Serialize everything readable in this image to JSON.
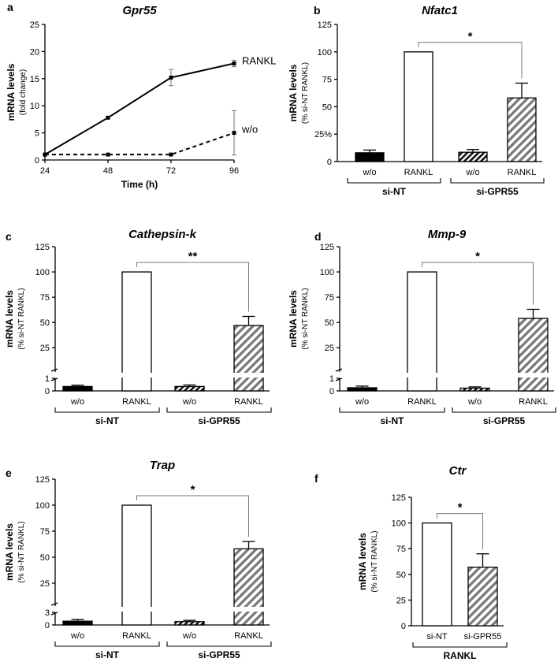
{
  "chart_data": [
    {
      "id": "a",
      "type": "line",
      "panel_letter": "a",
      "title": "Gpr55",
      "ylabel": "mRNA levels",
      "ylabel_sub": "(fold change)",
      "xlabel": "Time (h)",
      "x": [
        24,
        48,
        72,
        96
      ],
      "x_ticks": [
        "24",
        "48",
        "72",
        "96"
      ],
      "ylim": [
        0,
        25
      ],
      "y_ticks": [
        "0",
        "5",
        "10",
        "15",
        "20",
        "25"
      ],
      "series": [
        {
          "name": "RANKL",
          "style": "solid",
          "values": [
            1,
            7.8,
            15.2,
            17.8
          ],
          "errors": [
            0,
            0.2,
            1.5,
            0.6
          ]
        },
        {
          "name": "w/o",
          "style": "dashed",
          "values": [
            1,
            1,
            1,
            5
          ],
          "errors": [
            0,
            0,
            0,
            4.1
          ]
        }
      ]
    },
    {
      "id": "b",
      "type": "bar",
      "panel_letter": "b",
      "title": "Nfatc1",
      "ylabel": "mRNA levels",
      "ylabel_sub": "(% si-NT RANKL)",
      "ylim": [
        0,
        125
      ],
      "y_ticks": [
        "0",
        "25%",
        "50",
        "75",
        "100",
        "125"
      ],
      "categories": [
        "w/o",
        "RANKL",
        "w/o",
        "RANKL"
      ],
      "fills": [
        "black",
        "white",
        "hatch-dense",
        "hatch"
      ],
      "values": [
        8,
        100,
        8.5,
        58
      ],
      "errors": [
        2.5,
        0,
        2.5,
        13.5
      ],
      "groups": [
        "si-NT",
        "si-GPR55"
      ],
      "significance": "*"
    },
    {
      "id": "c",
      "type": "bar",
      "panel_letter": "c",
      "title": "Cathepsin-k",
      "ylabel": "mRNA levels",
      "ylabel_sub": "(% si-NT RANKL)",
      "y_ticks": [
        "0",
        "1",
        "25",
        "50",
        "75",
        "100",
        "125"
      ],
      "categories": [
        "w/o",
        "RANKL",
        "w/o",
        "RANKL"
      ],
      "fills": [
        "black",
        "white",
        "hatch-dense",
        "hatch"
      ],
      "values": [
        0.35,
        100,
        0.35,
        47
      ],
      "errors": [
        0.1,
        0,
        0.12,
        9
      ],
      "groups": [
        "si-NT",
        "si-GPR55"
      ],
      "significance": "**"
    },
    {
      "id": "d",
      "type": "bar",
      "panel_letter": "d",
      "title": "Mmp-9",
      "ylabel": "mRNA levels",
      "ylabel_sub": "(% si-NT RANKL)",
      "y_ticks": [
        "0",
        "1",
        "25",
        "50",
        "75",
        "100",
        "125"
      ],
      "categories": [
        "w/o",
        "RANKL",
        "w/o",
        "RANKL"
      ],
      "fills": [
        "black",
        "white",
        "hatch-dense",
        "hatch"
      ],
      "values": [
        0.25,
        100,
        0.22,
        54
      ],
      "errors": [
        0.13,
        0,
        0.1,
        9
      ],
      "groups": [
        "si-NT",
        "si-GPR55"
      ],
      "significance": "*"
    },
    {
      "id": "e",
      "type": "bar",
      "panel_letter": "e",
      "title": "Trap",
      "ylabel": "mRNA levels",
      "ylabel_sub": "(% si-NT RANKL)",
      "y_ticks": [
        "0",
        "3",
        "25",
        "50",
        "75",
        "100",
        "125"
      ],
      "categories": [
        "w/o",
        "RANKL",
        "w/o",
        "RANKL"
      ],
      "fills": [
        "black",
        "white",
        "hatch-dense",
        "hatch"
      ],
      "values": [
        0.9,
        100,
        0.8,
        58
      ],
      "errors": [
        0.4,
        0,
        0.3,
        7
      ],
      "groups": [
        "si-NT",
        "si-GPR55"
      ],
      "significance": "*"
    },
    {
      "id": "f",
      "type": "bar",
      "panel_letter": "f",
      "title": "Ctr",
      "ylabel": "mRNA levels",
      "ylabel_sub": "(% si-NT RANKL)",
      "ylim": [
        0,
        125
      ],
      "y_ticks": [
        "0",
        "25",
        "50",
        "75",
        "100",
        "125"
      ],
      "categories": [
        "si-NT",
        "si-GPR55"
      ],
      "fills": [
        "white",
        "hatch"
      ],
      "values": [
        100,
        57
      ],
      "errors": [
        0,
        13
      ],
      "groups": [
        "RANKL"
      ],
      "significance": "*"
    }
  ]
}
